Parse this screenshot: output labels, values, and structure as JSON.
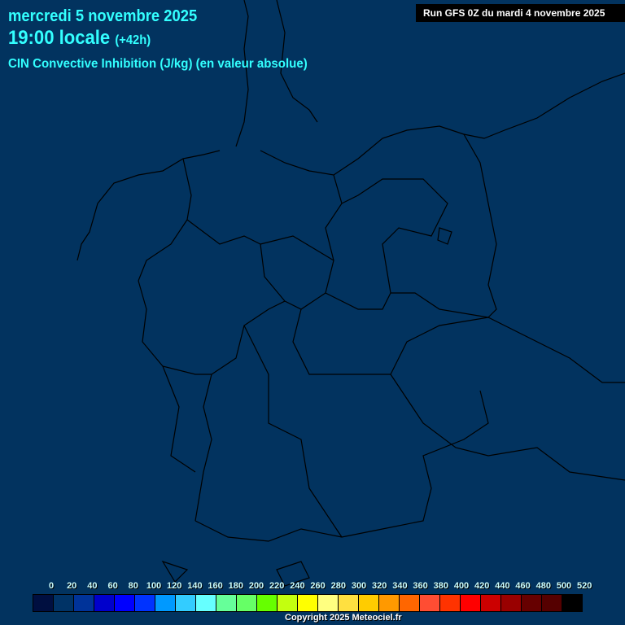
{
  "header": {
    "date": "mercredi 5 novembre 2025",
    "time": "19:00 locale",
    "lead": "(+42h)",
    "parameter": "CIN Convective Inhibition (J/kg) (en valeur absolue)",
    "run": "Run GFS 0Z du mardi 4 novembre 2025"
  },
  "legend": {
    "labels": [
      "0",
      "20",
      "40",
      "60",
      "80",
      "100",
      "120",
      "140",
      "160",
      "180",
      "200",
      "220",
      "240",
      "260",
      "280",
      "300",
      "320",
      "340",
      "360",
      "380",
      "400",
      "420",
      "440",
      "460",
      "480",
      "500",
      "520"
    ],
    "colors": [
      "#000f40",
      "#003366",
      "#003399",
      "#0000cc",
      "#0000ff",
      "#0033ff",
      "#0099ff",
      "#33ccff",
      "#66ffff",
      "#66ff99",
      "#66ff66",
      "#66ff00",
      "#c3ff0f",
      "#ffff00",
      "#ffff80",
      "#ffe040",
      "#ffcc00",
      "#ff9900",
      "#ff6600",
      "#ff4d33",
      "#ff3300",
      "#ff0000",
      "#cc0000",
      "#990000",
      "#660000",
      "#550000",
      "#000000"
    ]
  },
  "map": {
    "background": "#02335f",
    "field_value": "0-20"
  },
  "footer": {
    "copyright": "Copyright 2025 Meteociel.fr"
  }
}
